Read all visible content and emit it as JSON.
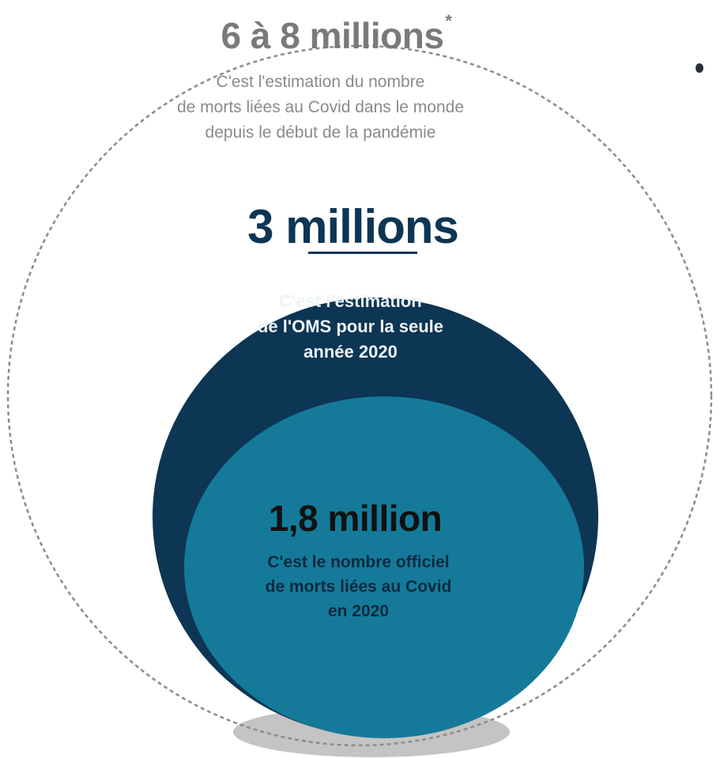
{
  "outer": {
    "value": "6 à 8 millions",
    "footnote_mark": "*",
    "description": [
      "C'est l'estimation du nombre",
      "de morts liées au Covid dans le monde",
      "depuis le début de la pandémie"
    ]
  },
  "middle": {
    "value": "3 millions",
    "description": [
      "C'est l'estimation",
      "de l'OMS pour la seule",
      "année 2020"
    ]
  },
  "inner": {
    "value": "1,8 million",
    "description": [
      "C'est le nombre officiel",
      "de morts liées au Covid",
      "en 2020"
    ]
  },
  "colors": {
    "outer_circle": "#8c8c8c",
    "middle_circle": "#0d3554",
    "inner_circle": "#157a9a",
    "shadow": "#c4c4c4"
  }
}
